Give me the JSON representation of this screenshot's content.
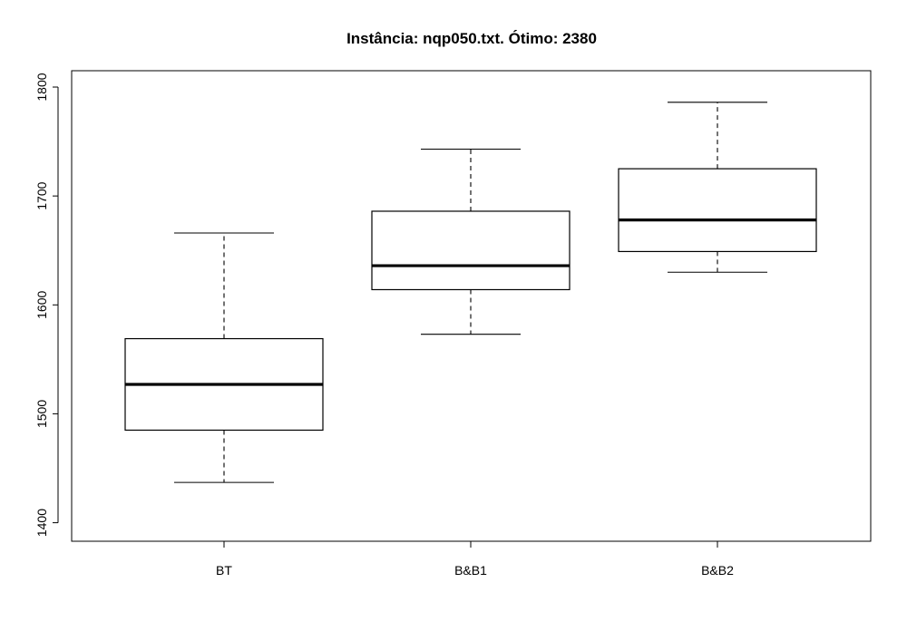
{
  "chart_data": {
    "type": "boxplot",
    "title": "Instância: nqp050.txt. Ótimo: 2380",
    "xlabel": "",
    "ylabel": "",
    "categories": [
      "BT",
      "B&B1",
      "B&B2"
    ],
    "boxes": [
      {
        "category": "BT",
        "whisker_low": 1437,
        "q1": 1485,
        "median": 1527,
        "q3": 1569,
        "whisker_high": 1666
      },
      {
        "category": "B&B1",
        "whisker_low": 1573,
        "q1": 1614,
        "median": 1636,
        "q3": 1686,
        "whisker_high": 1743
      },
      {
        "category": "B&B2",
        "whisker_low": 1630,
        "q1": 1649,
        "median": 1678,
        "q3": 1725,
        "whisker_high": 1786
      }
    ],
    "y_ticks": [
      1400,
      1500,
      1600,
      1700,
      1800
    ],
    "ylim": [
      1383,
      1815
    ],
    "grid": false,
    "legend": "none"
  }
}
